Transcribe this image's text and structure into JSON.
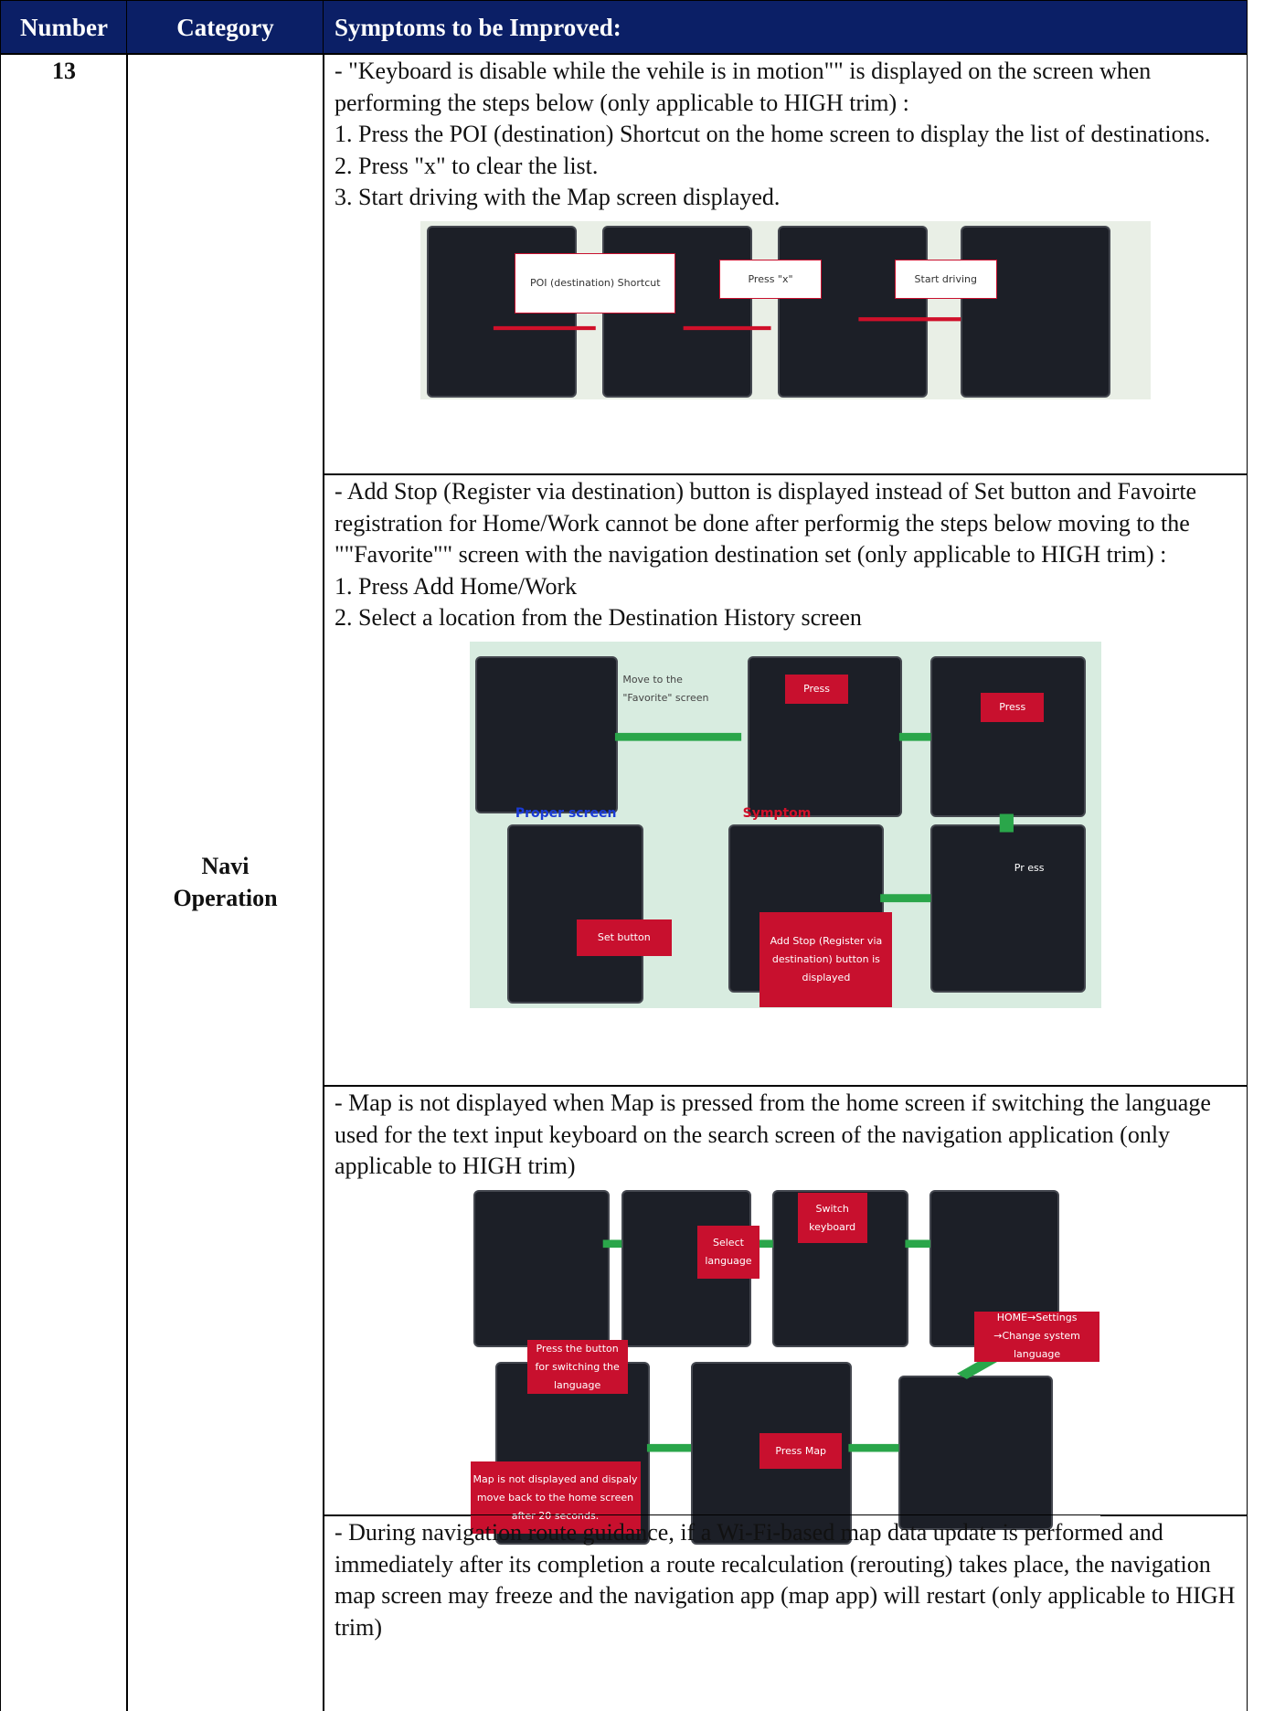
{
  "header": {
    "number": "Number",
    "category": "Category",
    "symptoms": "Symptoms to be Improved:"
  },
  "number": "13",
  "category": "Navi Operation",
  "items": [
    {
      "lines": [
        "- \"Keyboard is disable while the vehile is in motion\"\" is displayed on the screen when performing the steps below (only applicable to HIGH trim) :",
        "1. Press the POI (destination) Shortcut on the home screen to display the list of destinations.",
        "2. Press \"x\" to clear the list.",
        "3. Start driving with the Map screen displayed."
      ],
      "callouts": [
        "POI (destination) Shortcut",
        "Press \"x\"",
        "Start driving"
      ]
    },
    {
      "lines": [
        "- Add Stop (Register via destination) button is displayed instead of Set button and Favoirte registration for Home/Work cannot be done after performig the steps below moving to the \"\"Favorite\"\" screen with the navigation destination set (only applicable to HIGH trim) :",
        "1. Press Add Home/Work",
        "2. Select a location from the Destination History screen"
      ],
      "callouts": [
        "Move to the \"Favorite\" screen",
        "Press",
        "Press",
        "Proper screen",
        "Symptom",
        "Set button",
        "Add Stop (Register via destination) button is displayed",
        "Pr ess"
      ]
    },
    {
      "lines": [
        "- Map is not displayed when Map is pressed from the home screen if switching the language used for the text input keyboard on the search screen of the navigation application (only applicable to HIGH trim)"
      ],
      "callouts": [
        "Select language",
        "Switch keyboard",
        "Press the button for switching the language",
        "HOME→Settings →Change system language",
        "Press Map",
        "Map is not displayed and dispaly move back to the home screen after 20 seconds."
      ]
    },
    {
      "lines": [
        "- During navigation route guidance, if a Wi-Fi-based map data update is performed and immediately after its completion a route recalculation (rerouting) takes place, the navigation map screen may freeze and the navigation app (map app) will restart (only applicable to HIGH trim)"
      ],
      "callouts": []
    }
  ]
}
